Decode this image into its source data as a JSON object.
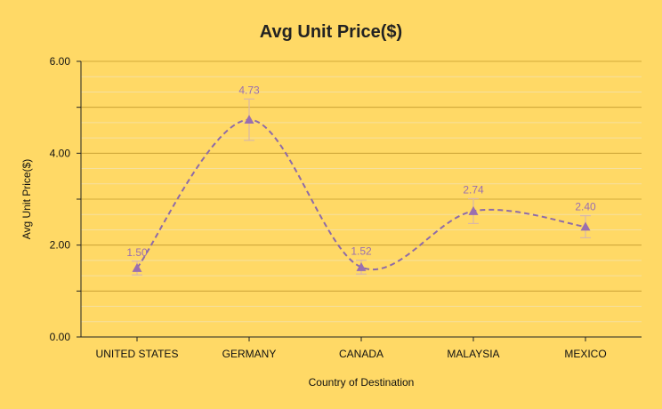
{
  "chart_data": {
    "type": "line",
    "title": "Avg Unit Price($)",
    "xlabel": "Country of Destination",
    "ylabel": "Avg Unit Price($)",
    "categories": [
      "UNITED STATES",
      "GERMANY",
      "CANADA",
      "MALAYSIA",
      "MEXICO"
    ],
    "series": [
      {
        "values": [
          1.5,
          4.73,
          1.52,
          2.74,
          2.4
        ],
        "error": [
          0.15,
          0.45,
          0.15,
          0.27,
          0.24
        ],
        "data_labels": [
          "1.50",
          "4.73",
          "1.52",
          "2.74",
          "2.40"
        ]
      }
    ],
    "ylim": [
      0,
      6
    ],
    "yticks": [
      "0.00",
      "2.00",
      "4.00",
      "6.00"
    ],
    "grid": true,
    "line_style": "dashed",
    "marker": "triangle",
    "colors": {
      "background": "#FFD966",
      "line": "#8E6BA8",
      "marker": "#9A6FB0",
      "error_bar": "#D9B8A8",
      "data_label": "#9A6FB0",
      "grid_major": "#C49A2E",
      "grid_minor": "#F5E0A0",
      "axis": "#222222"
    }
  }
}
